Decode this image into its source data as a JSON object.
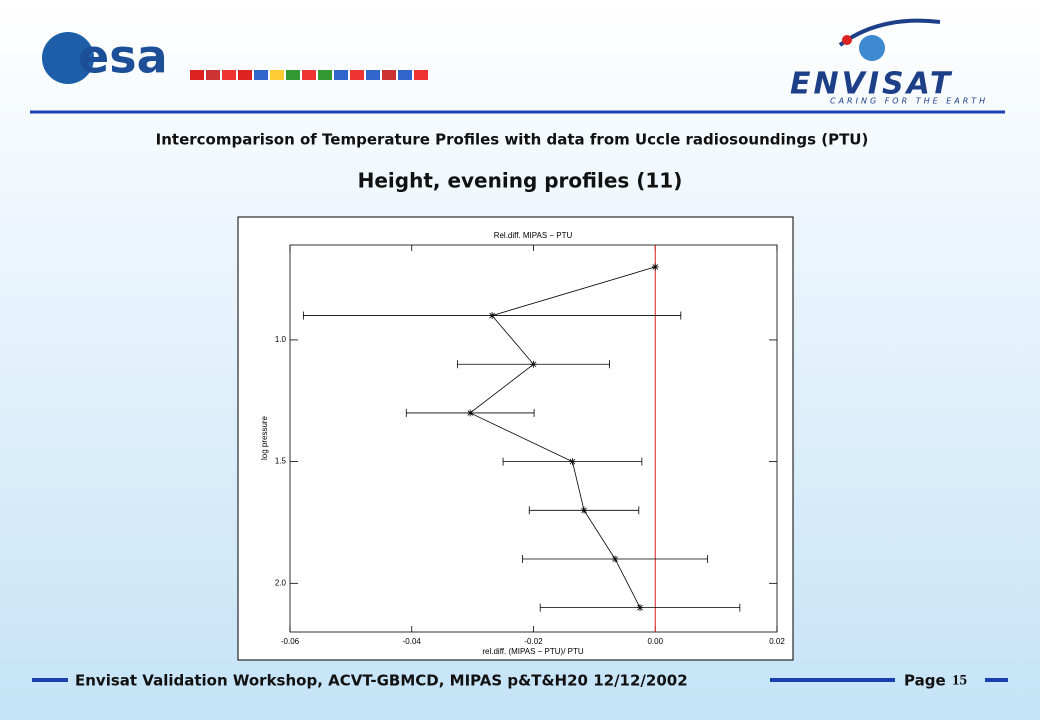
{
  "slide": {
    "logo_left": "esa",
    "logo_right": "ENVISAT",
    "logo_right_tagline": "CARING FOR THE EARTH",
    "title": "Intercomparison of Temperature Profiles with data from Uccle radiosoundings (PTU)",
    "subtitle": "Height, evening profiles (11)",
    "footer": "Envisat Validation Workshop, ACVT-GBMCD,  MIPAS p&T&H20 12/12/2002",
    "page_label": "Page",
    "page_number": "15"
  },
  "chart_data": {
    "type": "scatter",
    "title": "Rel.diff. MIPAS − PTU",
    "x_label": "rel.diff. (MIPAS − PTU)/ PTU",
    "y_label": "log pressure",
    "x": [
      0.0,
      -0.0268,
      -0.02,
      -0.0304,
      -0.0136,
      -0.0117,
      -0.0066,
      -0.0025
    ],
    "x_errors": [
      null,
      0.031,
      0.0125,
      0.0105,
      0.0114,
      0.009,
      0.0152,
      0.0164
    ],
    "values": [
      0.7,
      0.9,
      1.1,
      1.3,
      1.5,
      1.7,
      1.9,
      2.1
    ],
    "color": "#000000",
    "connect": true,
    "xlim": [
      -0.06,
      0.02
    ],
    "ylim": [
      2.2,
      0.61
    ],
    "xticks": [
      -0.06,
      -0.04,
      -0.02,
      {
        "value": 0,
        "label": "0.00"
      },
      0.02
    ],
    "yticks": [
      {
        "value": 1,
        "label": "1.0"
      },
      1.5,
      {
        "value": 2,
        "label": "2.0"
      }
    ],
    "ref_x": 0,
    "ref_color": "#dd2020"
  }
}
